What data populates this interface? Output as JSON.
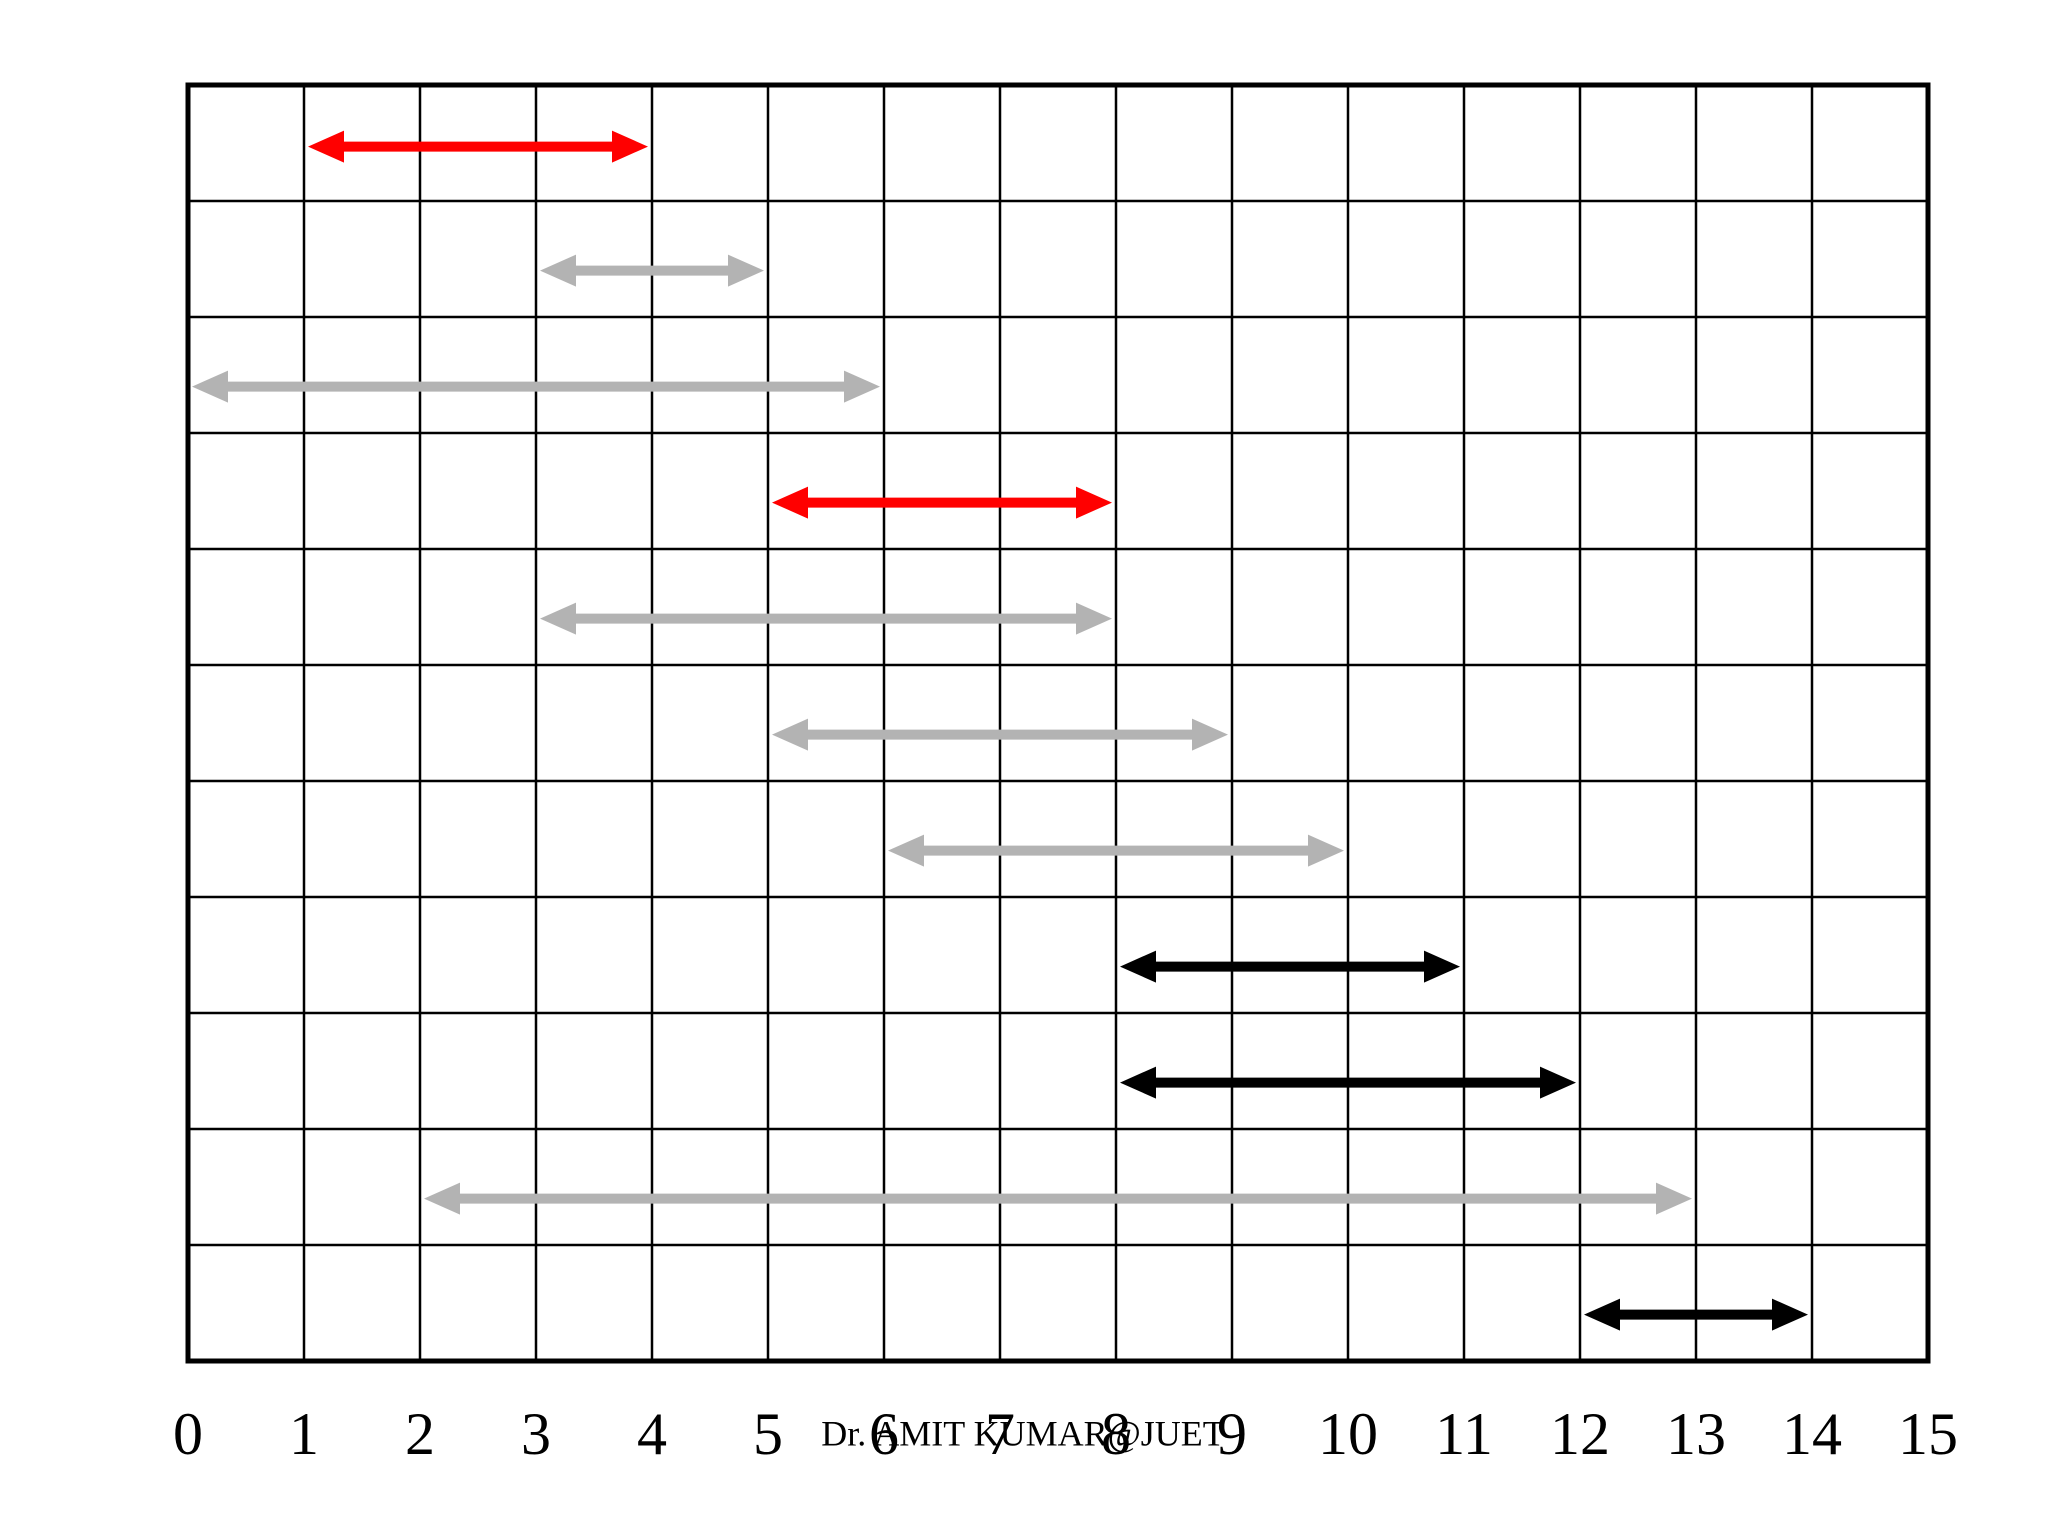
{
  "chart_data": {
    "type": "interval",
    "start": [
      1,
      3,
      0,
      5,
      3,
      5,
      6,
      8,
      8,
      2,
      12
    ],
    "end": [
      4,
      5,
      6,
      8,
      8,
      9,
      10,
      11,
      12,
      13,
      14
    ],
    "colors": [
      "#ff0000",
      "#b3b3b3",
      "#b3b3b3",
      "#ff0000",
      "#b3b3b3",
      "#b3b3b3",
      "#b3b3b3",
      "#000000",
      "#000000",
      "#b3b3b3",
      "#000000"
    ],
    "xlim": [
      0,
      15
    ],
    "xticks": [
      0,
      1,
      2,
      3,
      4,
      5,
      6,
      7,
      8,
      9,
      10,
      11,
      12,
      13,
      14,
      15
    ],
    "grid": true,
    "footer": "Dr. AMIT KUMAR@JUET"
  }
}
